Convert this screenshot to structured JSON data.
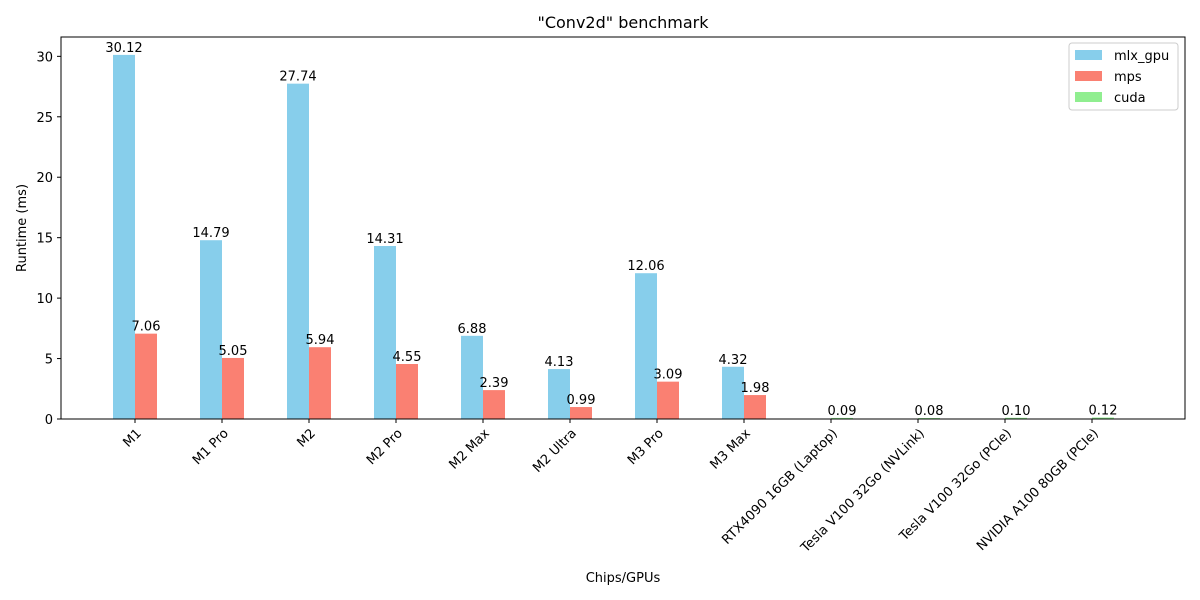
{
  "chart_data": {
    "type": "bar",
    "title": "\"Conv2d\" benchmark",
    "xlabel": "Chips/GPUs",
    "ylabel": "Runtime (ms)",
    "ylim": [
      0,
      31.6
    ],
    "yticks": [
      0,
      5,
      10,
      15,
      20,
      25,
      30
    ],
    "grid": false,
    "legend_position": "top-right",
    "categories": [
      "M1",
      "M1 Pro",
      "M2",
      "M2 Pro",
      "M2 Max",
      "M2 Ultra",
      "M3 Pro",
      "M3 Max",
      "RTX4090 16GB (Laptop)",
      "Tesla V100 32Go (NVLink)",
      "Tesla V100 32Go (PCIe)",
      "NVIDIA A100 80GB (PCIe)"
    ],
    "series": [
      {
        "name": "mlx_gpu",
        "color": "#87ceeb",
        "values": [
          30.12,
          14.79,
          27.74,
          14.31,
          6.88,
          4.13,
          12.06,
          4.32,
          null,
          null,
          null,
          null
        ],
        "labels": [
          "30.12",
          "14.79",
          "27.74",
          "14.31",
          "6.88",
          "4.13",
          "12.06",
          "4.32",
          null,
          null,
          null,
          null
        ]
      },
      {
        "name": "mps",
        "color": "#fa8072",
        "values": [
          7.06,
          5.05,
          5.94,
          4.55,
          2.39,
          0.99,
          3.09,
          1.98,
          null,
          null,
          null,
          null
        ],
        "labels": [
          "7.06",
          "5.05",
          "5.94",
          "4.55",
          "2.39",
          "0.99",
          "3.09",
          "1.98",
          null,
          null,
          null,
          null
        ]
      },
      {
        "name": "cuda",
        "color": "#90ee90",
        "values": [
          null,
          null,
          null,
          null,
          null,
          null,
          null,
          null,
          0.09,
          0.08,
          0.1,
          0.12
        ],
        "labels": [
          null,
          null,
          null,
          null,
          null,
          null,
          null,
          null,
          "0.09",
          "0.08",
          "0.10",
          "0.12"
        ]
      }
    ]
  }
}
